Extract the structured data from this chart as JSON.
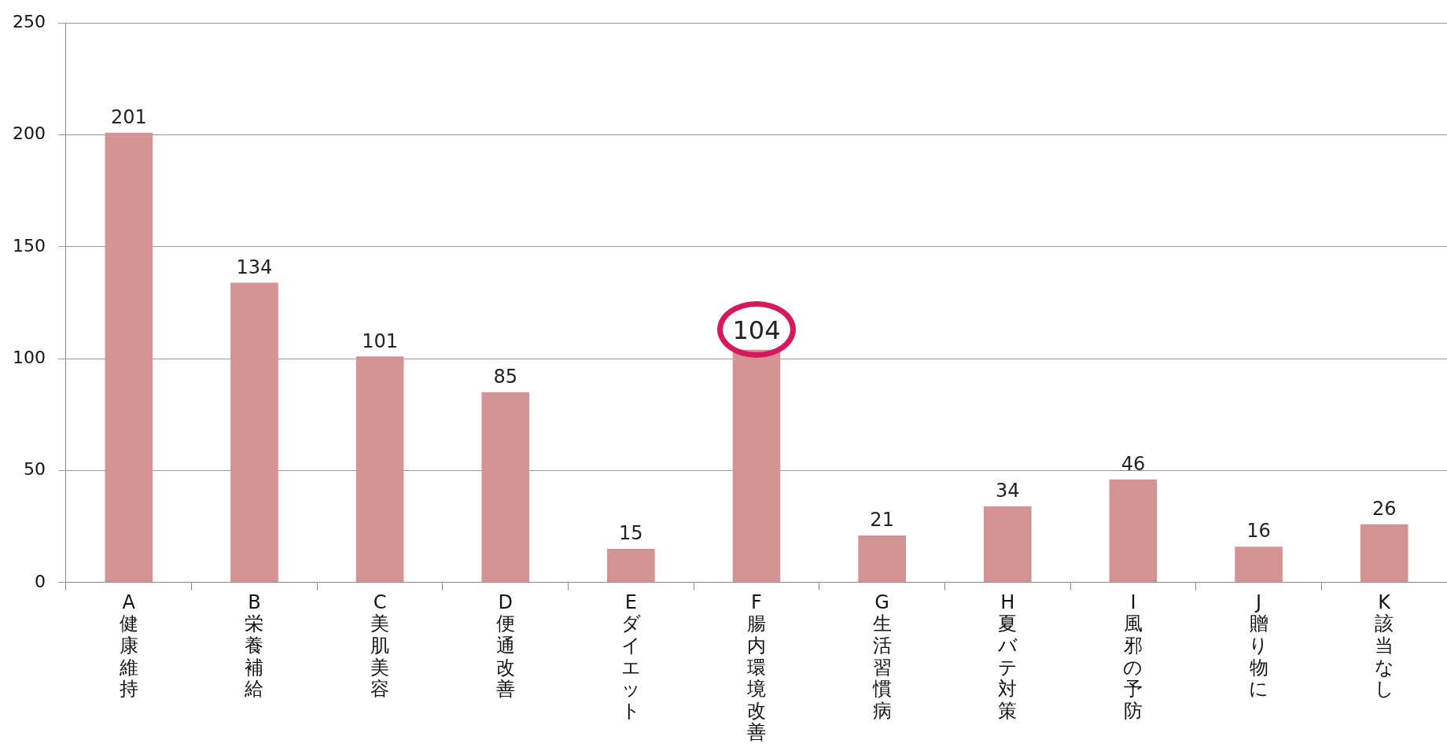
{
  "chart_data": {
    "type": "bar",
    "categories": [
      "A健康維持",
      "B栄養補給",
      "C美肌美容",
      "D便通改善",
      "Eダイエット",
      "F腸内環境改善",
      "G生活習慣病",
      "H夏バテ対策",
      "I風邪の予防",
      "J贈り物に",
      "K該当なし"
    ],
    "values": [
      201,
      134,
      101,
      85,
      15,
      104,
      21,
      34,
      46,
      16,
      26
    ],
    "value_labels": [
      "201",
      "134",
      "101",
      "85",
      "15",
      null,
      "21",
      "34",
      "46",
      "16",
      "26"
    ],
    "annotations": [
      {
        "text": "104",
        "x": "F腸内環境改善",
        "y": 104
      }
    ],
    "color": "#d29392",
    "ylim": [
      0,
      250
    ],
    "yticks": [
      0,
      50,
      100,
      150,
      200,
      250
    ],
    "grid": "y",
    "legend": false
  }
}
